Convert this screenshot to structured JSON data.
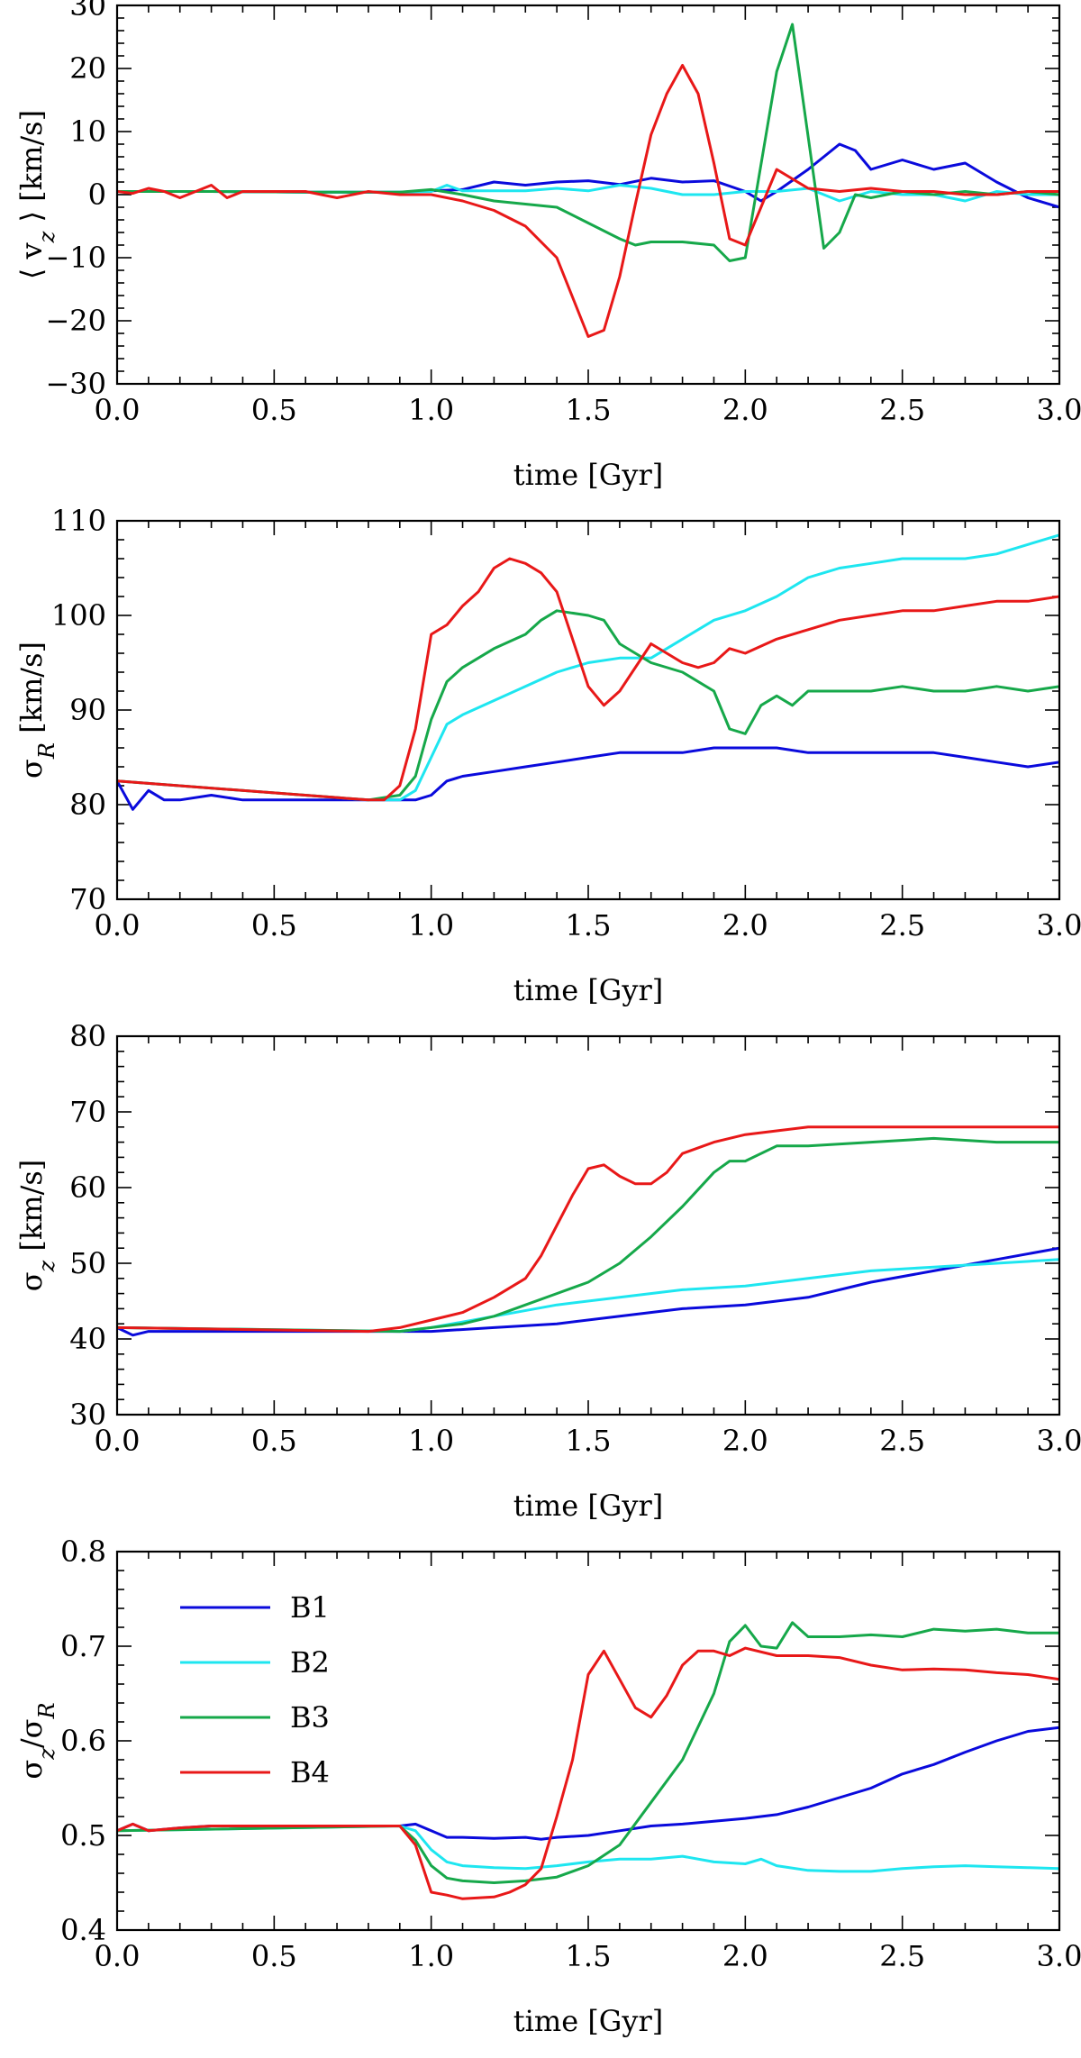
{
  "colors": {
    "B1": "#0a0adc",
    "B2": "#1ee6f0",
    "B3": "#16a84a",
    "B4": "#e81818"
  },
  "legend_labels": [
    "B1",
    "B2",
    "B3",
    "B4"
  ],
  "chart_data": [
    {
      "type": "line",
      "xlabel": "time [Gyr]",
      "ylabel": "⟨ v_z ⟩ [km/s]",
      "xlim": [
        0,
        3
      ],
      "ylim": [
        -30,
        30
      ],
      "xticks": [
        "0.0",
        "0.5",
        "1.0",
        "1.5",
        "2.0",
        "2.5",
        "3.0"
      ],
      "yticks": [
        "30",
        "20",
        "10",
        "0",
        "−10",
        "−20",
        "−30"
      ],
      "series": [
        {
          "name": "B1",
          "x": [
            0.0,
            0.3,
            0.6,
            0.9,
            1.0,
            1.1,
            1.2,
            1.3,
            1.4,
            1.5,
            1.6,
            1.7,
            1.8,
            1.9,
            2.0,
            2.05,
            2.1,
            2.2,
            2.3,
            2.35,
            2.4,
            2.5,
            2.6,
            2.7,
            2.8,
            2.9,
            3.0
          ],
          "values": [
            0.5,
            0.5,
            0.4,
            0.4,
            0.6,
            0.8,
            2.0,
            1.5,
            2.0,
            2.2,
            1.6,
            2.6,
            2.0,
            2.2,
            0.5,
            -1.0,
            0.5,
            4.0,
            8.0,
            7.0,
            4.0,
            5.5,
            4.0,
            5.0,
            2.0,
            -0.5,
            -2.0
          ]
        },
        {
          "name": "B2",
          "x": [
            0.0,
            0.3,
            0.6,
            0.9,
            1.0,
            1.05,
            1.1,
            1.2,
            1.3,
            1.4,
            1.5,
            1.6,
            1.7,
            1.8,
            1.9,
            2.0,
            2.1,
            2.2,
            2.3,
            2.4,
            2.5,
            2.6,
            2.7,
            2.8,
            2.9,
            3.0
          ],
          "values": [
            0.5,
            0.5,
            0.4,
            0.4,
            0.5,
            1.5,
            0.6,
            0.6,
            0.6,
            1.0,
            0.6,
            1.5,
            1.0,
            0.0,
            0.0,
            0.5,
            0.5,
            1.0,
            -1.0,
            0.5,
            0.0,
            0.0,
            -1.0,
            0.5,
            0.0,
            0.0
          ]
        },
        {
          "name": "B3",
          "x": [
            0.0,
            0.3,
            0.6,
            0.9,
            1.0,
            1.1,
            1.2,
            1.3,
            1.4,
            1.5,
            1.6,
            1.65,
            1.7,
            1.8,
            1.9,
            1.95,
            2.0,
            2.1,
            2.15,
            2.25,
            2.3,
            2.35,
            2.4,
            2.5,
            2.6,
            2.7,
            2.8,
            2.9,
            3.0
          ],
          "values": [
            0.5,
            0.5,
            0.4,
            0.4,
            0.8,
            0.0,
            -1.0,
            -1.5,
            -2.0,
            -4.5,
            -7.0,
            -8.0,
            -7.5,
            -7.5,
            -8.0,
            -10.5,
            -10.0,
            19.5,
            27.0,
            -8.5,
            -6.0,
            0.0,
            -0.5,
            0.5,
            0.0,
            0.5,
            0.0,
            0.5,
            0.0
          ]
        },
        {
          "name": "B4",
          "x": [
            0.0,
            0.05,
            0.1,
            0.15,
            0.2,
            0.3,
            0.35,
            0.4,
            0.5,
            0.6,
            0.7,
            0.8,
            0.9,
            1.0,
            1.1,
            1.2,
            1.3,
            1.4,
            1.5,
            1.55,
            1.6,
            1.65,
            1.7,
            1.75,
            1.8,
            1.85,
            1.9,
            1.95,
            2.0,
            2.05,
            2.1,
            2.2,
            2.3,
            2.4,
            2.5,
            2.6,
            2.7,
            2.8,
            2.9,
            3.0
          ],
          "values": [
            0.5,
            0.2,
            1.0,
            0.5,
            -0.5,
            1.5,
            -0.5,
            0.5,
            0.5,
            0.5,
            -0.5,
            0.5,
            0.0,
            0.0,
            -1.0,
            -2.5,
            -5.0,
            -10.0,
            -22.5,
            -21.5,
            -13.0,
            -1.5,
            9.5,
            16.0,
            20.5,
            16.0,
            5.0,
            -7.0,
            -8.0,
            -2.0,
            4.0,
            1.0,
            0.5,
            1.0,
            0.5,
            0.5,
            0.0,
            0.0,
            0.5,
            0.5
          ]
        }
      ]
    },
    {
      "type": "line",
      "xlabel": "time [Gyr]",
      "ylabel": "σ_R [km/s]",
      "xlim": [
        0,
        3
      ],
      "ylim": [
        70,
        110
      ],
      "xticks": [
        "0.0",
        "0.5",
        "1.0",
        "1.5",
        "2.0",
        "2.5",
        "3.0"
      ],
      "yticks": [
        "110",
        "100",
        "90",
        "80",
        "70"
      ],
      "series": [
        {
          "name": "B1",
          "x": [
            0.0,
            0.05,
            0.1,
            0.15,
            0.2,
            0.3,
            0.4,
            0.5,
            0.6,
            0.7,
            0.8,
            0.9,
            0.95,
            1.0,
            1.05,
            1.1,
            1.2,
            1.3,
            1.4,
            1.5,
            1.6,
            1.7,
            1.8,
            1.9,
            2.0,
            2.1,
            2.2,
            2.3,
            2.4,
            2.5,
            2.6,
            2.7,
            2.8,
            2.9,
            3.0
          ],
          "values": [
            82.5,
            79.5,
            81.5,
            80.5,
            80.5,
            81.0,
            80.5,
            80.5,
            80.5,
            80.5,
            80.5,
            80.5,
            80.5,
            81.0,
            82.5,
            83.0,
            83.5,
            84.0,
            84.5,
            85.0,
            85.5,
            85.5,
            85.5,
            86.0,
            86.0,
            86.0,
            85.5,
            85.5,
            85.5,
            85.5,
            85.5,
            85.0,
            84.5,
            84.0,
            84.5
          ]
        },
        {
          "name": "B2",
          "x": [
            0.0,
            0.8,
            0.9,
            0.95,
            1.0,
            1.05,
            1.1,
            1.2,
            1.3,
            1.4,
            1.5,
            1.6,
            1.7,
            1.8,
            1.9,
            2.0,
            2.1,
            2.2,
            2.3,
            2.4,
            2.5,
            2.6,
            2.7,
            2.8,
            2.9,
            3.0
          ],
          "values": [
            82.5,
            80.5,
            80.5,
            81.5,
            85.0,
            88.5,
            89.5,
            91.0,
            92.5,
            94.0,
            95.0,
            95.5,
            95.5,
            97.5,
            99.5,
            100.5,
            102.0,
            104.0,
            105.0,
            105.5,
            106.0,
            106.0,
            106.0,
            106.5,
            107.5,
            108.5
          ]
        },
        {
          "name": "B3",
          "x": [
            0.0,
            0.8,
            0.9,
            0.95,
            1.0,
            1.05,
            1.1,
            1.2,
            1.3,
            1.35,
            1.4,
            1.5,
            1.55,
            1.6,
            1.7,
            1.8,
            1.9,
            1.95,
            2.0,
            2.05,
            2.1,
            2.15,
            2.2,
            2.3,
            2.4,
            2.5,
            2.6,
            2.7,
            2.8,
            2.9,
            3.0
          ],
          "values": [
            82.5,
            80.5,
            81.0,
            83.0,
            89.0,
            93.0,
            94.5,
            96.5,
            98.0,
            99.5,
            100.5,
            100.0,
            99.5,
            97.0,
            95.0,
            94.0,
            92.0,
            88.0,
            87.5,
            90.5,
            91.5,
            90.5,
            92.0,
            92.0,
            92.0,
            92.5,
            92.0,
            92.0,
            92.5,
            92.0,
            92.5
          ]
        },
        {
          "name": "B4",
          "x": [
            0.0,
            0.8,
            0.85,
            0.9,
            0.95,
            1.0,
            1.05,
            1.1,
            1.15,
            1.2,
            1.25,
            1.3,
            1.35,
            1.4,
            1.45,
            1.5,
            1.55,
            1.6,
            1.7,
            1.8,
            1.85,
            1.9,
            1.95,
            2.0,
            2.1,
            2.2,
            2.3,
            2.4,
            2.5,
            2.6,
            2.7,
            2.8,
            2.9,
            3.0
          ],
          "values": [
            82.5,
            80.5,
            80.5,
            82.0,
            88.0,
            98.0,
            99.0,
            101.0,
            102.5,
            105.0,
            106.0,
            105.5,
            104.5,
            102.5,
            97.5,
            92.5,
            90.5,
            92.0,
            97.0,
            95.0,
            94.5,
            95.0,
            96.5,
            96.0,
            97.5,
            98.5,
            99.5,
            100.0,
            100.5,
            100.5,
            101.0,
            101.5,
            101.5,
            102.0
          ]
        }
      ]
    },
    {
      "type": "line",
      "xlabel": "time [Gyr]",
      "ylabel": "σ_z [km/s]",
      "xlim": [
        0,
        3
      ],
      "ylim": [
        30,
        80
      ],
      "xticks": [
        "0.0",
        "0.5",
        "1.0",
        "1.5",
        "2.0",
        "2.5",
        "3.0"
      ],
      "yticks": [
        "80",
        "70",
        "60",
        "50",
        "40",
        "30"
      ],
      "series": [
        {
          "name": "B1",
          "x": [
            0.0,
            0.05,
            0.1,
            0.2,
            0.3,
            0.5,
            0.7,
            0.9,
            1.0,
            1.2,
            1.4,
            1.6,
            1.8,
            2.0,
            2.2,
            2.4,
            2.6,
            2.8,
            3.0
          ],
          "values": [
            41.5,
            40.5,
            41.0,
            41.0,
            41.0,
            41.0,
            41.0,
            41.0,
            41.0,
            41.5,
            42.0,
            43.0,
            44.0,
            44.5,
            45.5,
            47.5,
            49.0,
            50.5,
            52.0
          ]
        },
        {
          "name": "B2",
          "x": [
            0.0,
            0.9,
            1.0,
            1.2,
            1.4,
            1.6,
            1.8,
            2.0,
            2.2,
            2.4,
            2.6,
            2.8,
            3.0
          ],
          "values": [
            41.5,
            41.0,
            41.5,
            43.0,
            44.5,
            45.5,
            46.5,
            47.0,
            48.0,
            49.0,
            49.5,
            50.0,
            50.5
          ]
        },
        {
          "name": "B3",
          "x": [
            0.0,
            0.9,
            1.0,
            1.1,
            1.2,
            1.3,
            1.4,
            1.5,
            1.6,
            1.7,
            1.8,
            1.9,
            1.95,
            2.0,
            2.1,
            2.2,
            2.4,
            2.6,
            2.8,
            3.0
          ],
          "values": [
            41.5,
            41.0,
            41.5,
            42.0,
            43.0,
            44.5,
            46.0,
            47.5,
            50.0,
            53.5,
            57.5,
            62.0,
            63.5,
            63.5,
            65.5,
            65.5,
            66.0,
            66.5,
            66.0,
            66.0
          ]
        },
        {
          "name": "B4",
          "x": [
            0.0,
            0.8,
            0.9,
            1.0,
            1.1,
            1.2,
            1.3,
            1.35,
            1.4,
            1.45,
            1.5,
            1.55,
            1.6,
            1.65,
            1.7,
            1.75,
            1.8,
            1.9,
            2.0,
            2.1,
            2.2,
            2.4,
            2.6,
            2.8,
            3.0
          ],
          "values": [
            41.5,
            41.0,
            41.5,
            42.5,
            43.5,
            45.5,
            48.0,
            51.0,
            55.0,
            59.0,
            62.5,
            63.0,
            61.5,
            60.5,
            60.5,
            62.0,
            64.5,
            66.0,
            67.0,
            67.5,
            68.0,
            68.0,
            68.0,
            68.0,
            68.0
          ]
        }
      ]
    },
    {
      "type": "line",
      "xlabel": "time [Gyr]",
      "ylabel": "σ_z/σ_R",
      "xlim": [
        0,
        3
      ],
      "ylim": [
        0.4,
        0.8
      ],
      "xticks": [
        "0.0",
        "0.5",
        "1.0",
        "1.5",
        "2.0",
        "2.5",
        "3.0"
      ],
      "yticks": [
        "0.8",
        "0.7",
        "0.6",
        "0.5",
        "0.4"
      ],
      "legend_position": "top-left",
      "series": [
        {
          "name": "B1",
          "x": [
            0.0,
            0.05,
            0.1,
            0.2,
            0.3,
            0.5,
            0.7,
            0.9,
            0.95,
            1.0,
            1.05,
            1.1,
            1.2,
            1.3,
            1.35,
            1.4,
            1.5,
            1.6,
            1.7,
            1.8,
            1.9,
            2.0,
            2.1,
            2.2,
            2.3,
            2.4,
            2.5,
            2.6,
            2.7,
            2.8,
            2.9,
            3.0
          ],
          "values": [
            0.505,
            0.512,
            0.505,
            0.508,
            0.51,
            0.51,
            0.51,
            0.51,
            0.512,
            0.505,
            0.498,
            0.498,
            0.497,
            0.498,
            0.496,
            0.498,
            0.5,
            0.505,
            0.51,
            0.512,
            0.515,
            0.518,
            0.522,
            0.53,
            0.54,
            0.55,
            0.565,
            0.575,
            0.588,
            0.6,
            0.61,
            0.614
          ]
        },
        {
          "name": "B2",
          "x": [
            0.0,
            0.9,
            0.95,
            1.0,
            1.05,
            1.1,
            1.2,
            1.3,
            1.4,
            1.5,
            1.6,
            1.7,
            1.8,
            1.9,
            2.0,
            2.05,
            2.1,
            2.2,
            2.3,
            2.4,
            2.5,
            2.6,
            2.7,
            2.8,
            2.9,
            3.0
          ],
          "values": [
            0.505,
            0.51,
            0.505,
            0.485,
            0.472,
            0.468,
            0.466,
            0.465,
            0.468,
            0.472,
            0.475,
            0.475,
            0.478,
            0.472,
            0.47,
            0.475,
            0.468,
            0.463,
            0.462,
            0.462,
            0.465,
            0.467,
            0.468,
            0.467,
            0.466,
            0.465
          ]
        },
        {
          "name": "B3",
          "x": [
            0.0,
            0.9,
            0.95,
            1.0,
            1.05,
            1.1,
            1.2,
            1.3,
            1.4,
            1.5,
            1.6,
            1.7,
            1.8,
            1.9,
            1.95,
            2.0,
            2.05,
            2.1,
            2.15,
            2.2,
            2.3,
            2.4,
            2.5,
            2.6,
            2.7,
            2.8,
            2.9,
            3.0
          ],
          "values": [
            0.505,
            0.51,
            0.495,
            0.468,
            0.455,
            0.452,
            0.45,
            0.452,
            0.456,
            0.468,
            0.49,
            0.535,
            0.58,
            0.65,
            0.705,
            0.722,
            0.7,
            0.698,
            0.725,
            0.71,
            0.71,
            0.712,
            0.71,
            0.718,
            0.716,
            0.718,
            0.714,
            0.714
          ]
        },
        {
          "name": "B4",
          "x": [
            0.0,
            0.05,
            0.1,
            0.2,
            0.3,
            0.5,
            0.7,
            0.9,
            0.95,
            1.0,
            1.05,
            1.1,
            1.2,
            1.25,
            1.3,
            1.35,
            1.4,
            1.45,
            1.5,
            1.55,
            1.6,
            1.65,
            1.7,
            1.75,
            1.8,
            1.85,
            1.9,
            1.95,
            2.0,
            2.1,
            2.2,
            2.3,
            2.4,
            2.5,
            2.6,
            2.7,
            2.8,
            2.9,
            3.0
          ],
          "values": [
            0.505,
            0.512,
            0.505,
            0.508,
            0.51,
            0.51,
            0.51,
            0.51,
            0.49,
            0.44,
            0.437,
            0.433,
            0.435,
            0.44,
            0.448,
            0.465,
            0.52,
            0.58,
            0.67,
            0.695,
            0.665,
            0.635,
            0.625,
            0.648,
            0.68,
            0.695,
            0.695,
            0.69,
            0.698,
            0.69,
            0.69,
            0.688,
            0.68,
            0.675,
            0.676,
            0.675,
            0.672,
            0.67,
            0.665
          ]
        }
      ]
    }
  ]
}
